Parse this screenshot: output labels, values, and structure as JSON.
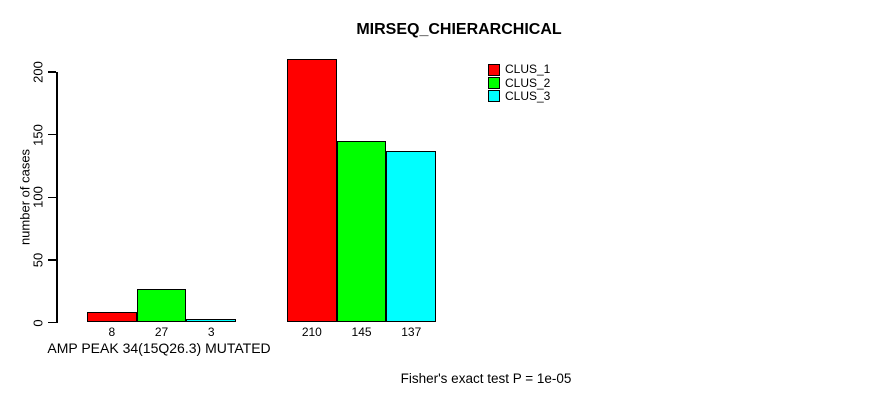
{
  "figure": {
    "background": "#ffffff",
    "text_color": "#000000",
    "axis_color": "#000000"
  },
  "chart_data": {
    "type": "bar",
    "title": "MIRSEQ_CHIERARCHICAL",
    "ylabel": "number of cases",
    "xlabel": "",
    "ylim": [
      0,
      200
    ],
    "yticks": [
      0,
      50,
      100,
      150,
      200
    ],
    "grid": false,
    "legend_position": "top-right",
    "categories": [
      "AMP PEAK 34(15Q26.3) MUTATED",
      ""
    ],
    "series": [
      {
        "name": "CLUS_1",
        "color": "#ff0000",
        "values": [
          8,
          210
        ]
      },
      {
        "name": "CLUS_2",
        "color": "#00ff00",
        "values": [
          27,
          145
        ]
      },
      {
        "name": "CLUS_3",
        "color": "#00ffff",
        "values": [
          3,
          137
        ]
      }
    ],
    "bar_border_color": "#000000",
    "bar_value_labels": [
      [
        8,
        27,
        3
      ],
      [
        210,
        145,
        137
      ]
    ],
    "annotation": "Fisher's exact test P = 1e-05"
  }
}
